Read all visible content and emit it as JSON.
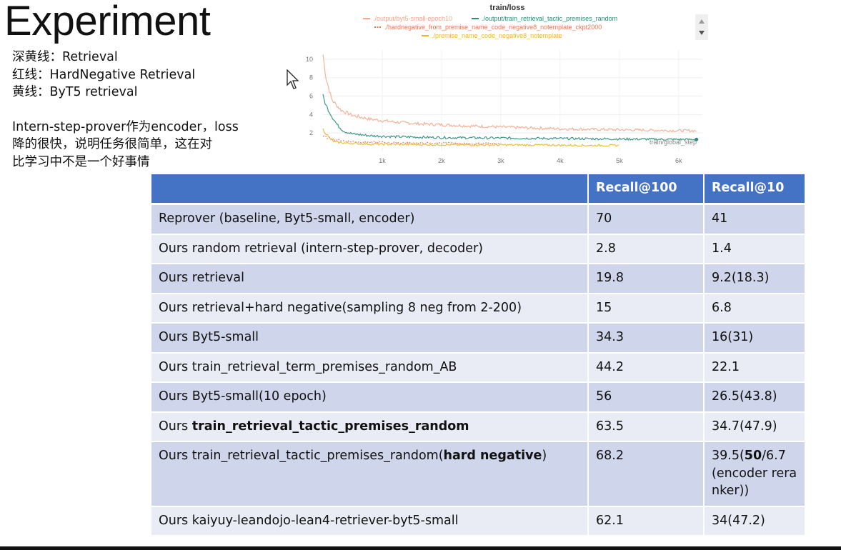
{
  "slide": {
    "title": "Experiment"
  },
  "notes": {
    "legend_lines": [
      "深黄线：Retrieval",
      "红线：HardNegative Retrieval",
      "黄线：ByT5 retrieval"
    ],
    "comment_lines": [
      "Intern-step-prover作为encoder，loss",
      "降的很快，说明任务很简单，这在对",
      "比学习中不是一个好事情"
    ]
  },
  "chart_data": {
    "type": "line",
    "title": "train/loss",
    "xlabel": "train/global_step",
    "ylabel": "",
    "x_ticks": [
      "1k",
      "2k",
      "3k",
      "4k",
      "5k",
      "6k"
    ],
    "y_ticks": [
      "2",
      "4",
      "6",
      "8",
      "10"
    ],
    "xlim": [
      0,
      6400
    ],
    "ylim": [
      0,
      11
    ],
    "grid": true,
    "legend_position": "top",
    "series": [
      {
        "name": "./output/byt5-small-epoch10",
        "color": "#f4a88c",
        "style": "solid",
        "x": [
          0,
          50,
          150,
          300,
          500,
          800,
          1200,
          1600,
          2000,
          2500,
          3000,
          3500,
          4000,
          4500,
          5000,
          5500,
          6000,
          6300
        ],
        "y": [
          10.5,
          8.0,
          5.6,
          4.5,
          3.9,
          3.5,
          3.2,
          3.0,
          2.9,
          2.75,
          2.65,
          2.55,
          2.45,
          2.4,
          2.35,
          2.3,
          2.25,
          2.25
        ]
      },
      {
        "name": "./output/train_retrieval_tactic_premises_random",
        "color": "#2a8c7c",
        "style": "solid",
        "x": [
          0,
          50,
          150,
          250,
          350,
          500,
          800,
          1200,
          2000,
          3000,
          4000,
          5000,
          6000,
          6300
        ],
        "y": [
          6.0,
          5.0,
          3.8,
          2.8,
          2.2,
          1.9,
          1.7,
          1.6,
          1.5,
          1.45,
          1.4,
          1.35,
          1.3,
          1.3
        ]
      },
      {
        "name": "./hardnegative_from_premise_name_code_negative8_notemplate_ckpt2000",
        "color": "#e8764f",
        "style": "dotted",
        "x": [
          0,
          200,
          400,
          800,
          1200,
          1600,
          2000,
          2400,
          3000
        ],
        "y": [
          1.6,
          1.3,
          1.1,
          1.0,
          0.95,
          0.9,
          0.9,
          0.85,
          0.85
        ]
      },
      {
        "name": "./premise_name_code_negative8_notemplate",
        "color": "#eab52b",
        "style": "solid",
        "x": [
          0,
          100,
          200,
          400,
          800,
          1500,
          2500,
          3500,
          4500,
          5000
        ],
        "y": [
          2.4,
          1.5,
          1.0,
          0.9,
          0.8,
          0.75,
          0.7,
          0.7,
          0.65,
          0.65
        ]
      }
    ]
  },
  "table": {
    "headers": [
      "",
      "Recall@100",
      "Recall@10"
    ],
    "rows": [
      {
        "name_plain": "Reprover (baseline, Byt5-small, encoder)",
        "r100": "70",
        "r10": "41"
      },
      {
        "name_plain": "Ours random retrieval (intern-step-prover, decoder)",
        "r100": "2.8",
        "r10": "1.4"
      },
      {
        "name_plain": "Ours retrieval",
        "r100": "19.8",
        "r10": "9.2(18.3)"
      },
      {
        "name_plain": "Ours retrieval+hard negative(sampling 8 neg from 2-200)",
        "r100": "15",
        "r10": "6.8"
      },
      {
        "name_plain": "Ours Byt5-small",
        "r100": "34.3",
        "r10": "16(31)"
      },
      {
        "name_plain": "Ours train_retrieval_term_premises_random_AB",
        "r100": "44.2",
        "r10": "22.1"
      },
      {
        "name_plain": "Ours Byt5-small(10 epoch)",
        "r100": "56",
        "r10": "26.5(43.8)"
      },
      {
        "name_pre": "Ours ",
        "name_bold": "train_retrieval_tactic_premises_random",
        "name_post": "",
        "r100": "63.5",
        "r10": "34.7(47.9)"
      },
      {
        "name_pre": "Ours train_retrieval_tactic_premises_random(",
        "name_bold": "hard negative",
        "name_post": ")",
        "r100": "68.2",
        "r10_pre": "39.5(",
        "r10_bold": "50",
        "r10_post": "/6.7(encoder reranker))"
      },
      {
        "name_plain": "Ours kaiyuy-leandojo-lean4-retriever-byt5-small",
        "r100": "62.1",
        "r10": "34(47.2)"
      }
    ]
  }
}
